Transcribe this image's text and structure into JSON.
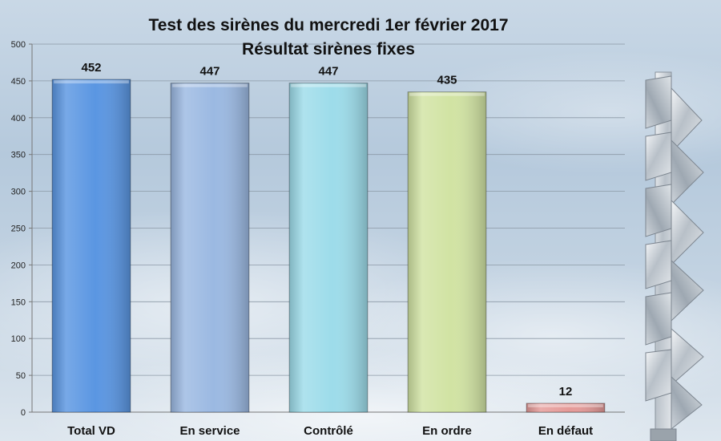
{
  "chart_data": {
    "type": "bar",
    "title": "Test des sirènes du mercredi 1er février 2017",
    "subtitle": "Résultat sirènes fixes",
    "categories": [
      "Total VD",
      "En service",
      "Contrôlé",
      "En ordre",
      "En défaut"
    ],
    "values": [
      452,
      447,
      447,
      435,
      12
    ],
    "data_labels": [
      "452",
      "447",
      "447",
      "435",
      "12"
    ],
    "colors": [
      "#5a96e2",
      "#9bb9e2",
      "#9ddcea",
      "#d1e3a3",
      "#e59a98"
    ],
    "ylim": [
      0,
      500
    ],
    "yticks": [
      "0",
      "50",
      "100",
      "150",
      "200",
      "250",
      "300",
      "350",
      "400",
      "450",
      "500"
    ],
    "grid": true,
    "legend": "none",
    "xlabel": "",
    "ylabel": ""
  }
}
